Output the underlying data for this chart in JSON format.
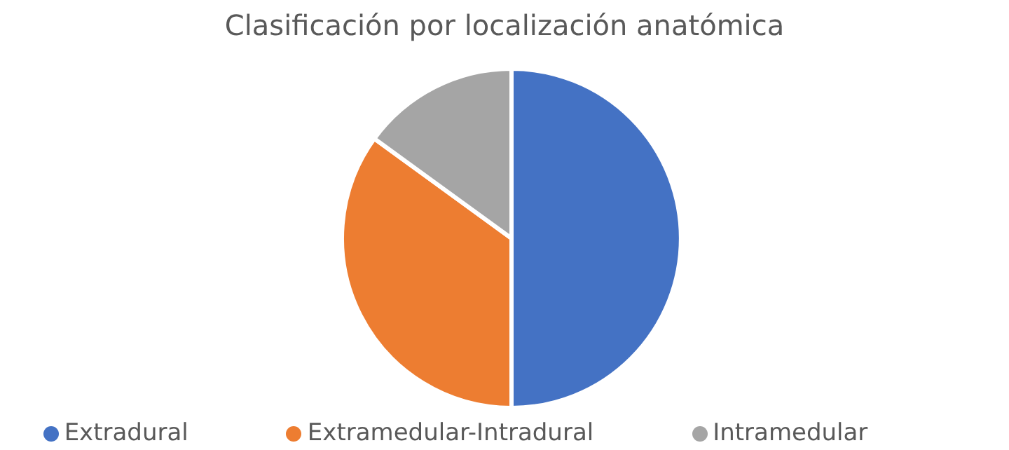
{
  "chart_data": {
    "type": "pie",
    "title": "Clasificación por localización anatómica",
    "categories": [
      "Extradural",
      "Extramedular-Intradural",
      "Intramedular"
    ],
    "values": [
      50,
      35,
      15
    ],
    "colors": [
      "#4472c4",
      "#ed7d31",
      "#a5a5a5"
    ],
    "legend": "bottom"
  }
}
